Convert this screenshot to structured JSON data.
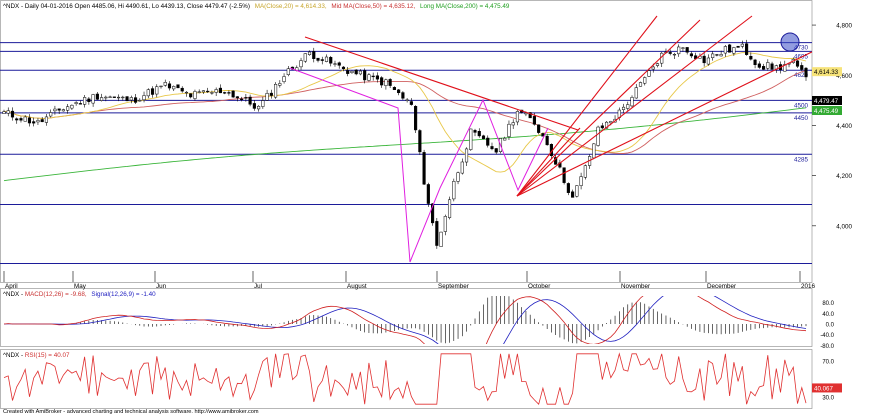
{
  "header": {
    "main": {
      "symbol": "^NDX - Daily 04-01-2016 Open 4485.06, Hi 4490.61, Lo 4439.13, Close 4479.47 (-2.5%)",
      "ma20": "MA(Close,20) = 4,614.33,",
      "ma50": "Mid MA(Close,50) = 4,635.12,",
      "ma200": "Long MA(Close,200) = 4,475.49"
    },
    "macd": {
      "prefix": "^NDX - ",
      "macd": "MACD(12,26) = -9.68,",
      "signal": "Signal(12,26,9) = -1.40"
    },
    "rsi": {
      "prefix": "^NDX - ",
      "rsi": "RSI(15) = 40.07"
    }
  },
  "footer": "Created with AmiBroker - advanced charting and technical analysis software. http://www.amibroker.com",
  "colors": {
    "up": "#ffffff",
    "down": "#000000",
    "ma20": "#e8c84a",
    "ma50": "#d06060",
    "ma200": "#3ab53a",
    "hline": "#1c1c9a",
    "trend": "#e0101a",
    "zigzag": "#e020e0",
    "macd": "#2020c0",
    "signal": "#d02020",
    "rsi": "#e03030",
    "price_tag": "#000000"
  },
  "chart_data": [
    {
      "type": "candlestick",
      "title": "^NDX Daily",
      "ylim": [
        3820,
        4860
      ],
      "yticks": [
        4000,
        4200,
        4400,
        4600,
        4800
      ],
      "ytick_labels": [
        "4,000",
        "4,200",
        "4,400",
        "4,600",
        "4,800"
      ],
      "months": [
        "April",
        "May",
        "Jun",
        "Jul",
        "August",
        "September",
        "October",
        "November",
        "December",
        "2016"
      ],
      "horizontal_levels": [
        {
          "value": 4730,
          "label": "4730"
        },
        {
          "value": 4695,
          "label": "4695"
        },
        {
          "value": 4620,
          "label": "4620"
        },
        {
          "value": 4500,
          "label": "4500"
        },
        {
          "value": 4450,
          "label": "4450"
        },
        {
          "value": 4285,
          "label": "4285"
        },
        {
          "value": 4085,
          "label": ""
        },
        {
          "value": 3850,
          "label": ""
        }
      ],
      "last_values": [
        {
          "name": "MA20",
          "value": "4,614.33"
        },
        {
          "name": "Close",
          "value": "4,479.47"
        },
        {
          "name": "MA200",
          "value": "4,475.49"
        }
      ],
      "series": [
        {
          "name": "MA(Close,20)",
          "value": 4614.33
        },
        {
          "name": "Mid MA(Close,50)",
          "value": 4635.12
        },
        {
          "name": "Long MA(Close,200)",
          "value": 4475.49
        }
      ]
    },
    {
      "type": "line",
      "title": "MACD",
      "ylim": [
        -75,
        105
      ],
      "yticks": [
        80,
        40,
        0,
        -40,
        -80
      ],
      "ytick_labels": [
        "80.0",
        "40.0",
        "0.0",
        "-40.0",
        "-80.0"
      ],
      "series": [
        {
          "name": "MACD(12,26)",
          "value": -9.68
        },
        {
          "name": "Signal(12,26,9)",
          "value": -1.4
        }
      ]
    },
    {
      "type": "line",
      "title": "RSI",
      "ylim": [
        20,
        80
      ],
      "yticks": [
        70,
        30
      ],
      "ytick_labels": [
        "70.0",
        "30.0"
      ],
      "last_value_label": "40.067",
      "series": [
        {
          "name": "RSI(15)",
          "value": 40.07
        }
      ]
    }
  ]
}
